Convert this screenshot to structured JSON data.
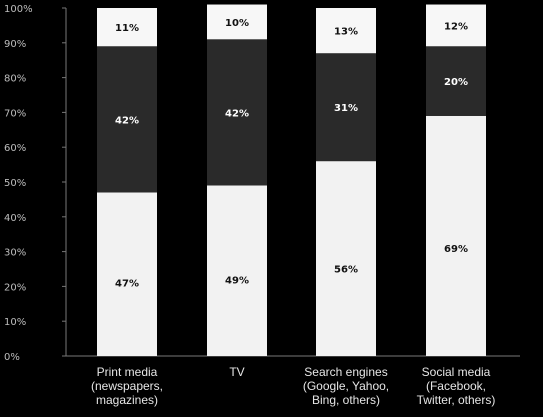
{
  "chart_data": {
    "type": "bar",
    "stacked": true,
    "percent": true,
    "categories": [
      [
        "Print media",
        "(newspapers,",
        "magazines)"
      ],
      [
        "TV"
      ],
      [
        "Search engines",
        "(Google, Yahoo,",
        "Bing, others)"
      ],
      [
        "Social media",
        "(Facebook,",
        "Twitter, others)"
      ]
    ],
    "series": [
      {
        "values": [
          47,
          49,
          56,
          69
        ],
        "labels": [
          "47%",
          "49%",
          "56%",
          "69%"
        ]
      },
      {
        "values": [
          42,
          42,
          31,
          20
        ],
        "labels": [
          "42%",
          "42%",
          "31%",
          "20%"
        ]
      },
      {
        "values": [
          11,
          10,
          13,
          12
        ],
        "labels": [
          "11%",
          "10%",
          "13%",
          "12%"
        ]
      }
    ],
    "yticks": [
      "0%",
      "10%",
      "20%",
      "30%",
      "40%",
      "50%",
      "60%",
      "70%",
      "80%",
      "90%",
      "100%"
    ],
    "ylim": [
      0,
      100
    ],
    "title": "",
    "xlabel": "",
    "ylabel": "",
    "legend": "none",
    "grid": false,
    "colors": {
      "background": "#000000",
      "segments": [
        "#f2f2f2",
        "#2a2a2a",
        "#f7f7f7"
      ],
      "label_on_light": "#111111",
      "label_on_dark": "#ffffff",
      "ticks": "#bdbdbd",
      "category_text": "#e6e6e6",
      "axis": "#777777"
    }
  }
}
